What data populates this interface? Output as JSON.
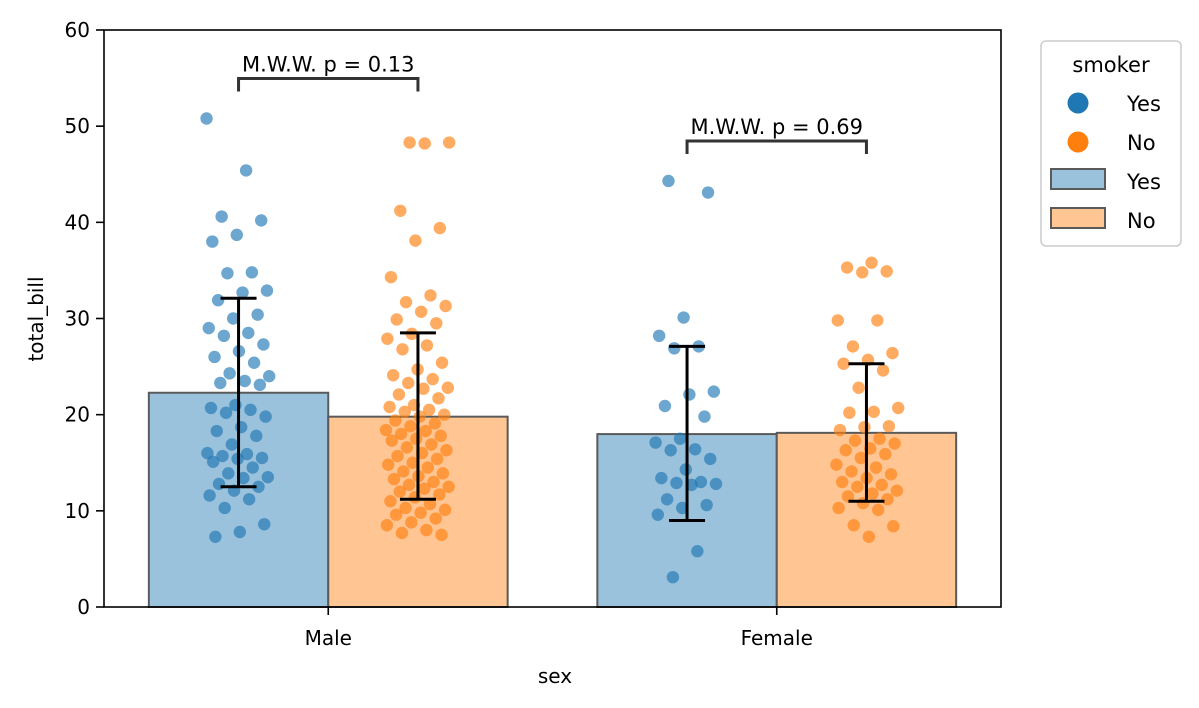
{
  "chart_data": {
    "type": "bar",
    "xlabel": "sex",
    "ylabel": "total_bill",
    "ylim": [
      0,
      60
    ],
    "yticks": [
      "0",
      "10",
      "20",
      "30",
      "40",
      "50",
      "60"
    ],
    "categories": [
      "Male",
      "Female"
    ],
    "hue_title": "smoker",
    "grid": false,
    "legend_position": "outside-top-right",
    "colors": {
      "Yes": "#1f77b4",
      "No": "#ff7f0e"
    },
    "series": [
      {
        "name": "Yes",
        "values": [
          22.28,
          17.98
        ],
        "err_low": [
          12.5,
          9.0
        ],
        "err_high": [
          32.1,
          27.1
        ],
        "points": [
          [
            50.8,
            45.4,
            40.6,
            40.2,
            38.7,
            38.0,
            34.8,
            34.7,
            32.9,
            32.7,
            31.9,
            30.4,
            30.0,
            29.0,
            28.5,
            28.2,
            27.3,
            26.6,
            26.0,
            25.4,
            24.3,
            24.0,
            23.5,
            23.3,
            23.1,
            21.0,
            20.7,
            20.5,
            20.2,
            19.8,
            18.7,
            18.3,
            17.8,
            16.9,
            16.0,
            15.9,
            15.7,
            15.5,
            15.4,
            15.1,
            14.5,
            13.9,
            13.5,
            13.4,
            12.8,
            12.5,
            12.1,
            11.6,
            11.2,
            10.3,
            8.6,
            7.8,
            7.3
          ],
          [
            44.3,
            43.1,
            30.1,
            28.2,
            27.1,
            26.9,
            22.4,
            22.1,
            20.9,
            19.8,
            17.5,
            17.1,
            16.4,
            16.3,
            15.4,
            14.3,
            13.4,
            13.0,
            12.9,
            12.8,
            12.7,
            11.2,
            10.6,
            10.3,
            9.6,
            5.8,
            3.1
          ]
        ]
      },
      {
        "name": "No",
        "values": [
          19.79,
          18.11
        ],
        "err_low": [
          11.2,
          11.0
        ],
        "err_high": [
          28.5,
          25.3
        ],
        "points": [
          [
            48.3,
            48.3,
            48.2,
            41.2,
            39.4,
            38.1,
            34.3,
            32.4,
            31.7,
            31.3,
            30.7,
            29.9,
            29.5,
            28.4,
            27.9,
            27.2,
            26.8,
            25.4,
            24.7,
            24.1,
            23.7,
            23.3,
            22.8,
            22.7,
            22.1,
            21.7,
            21.0,
            20.8,
            20.5,
            20.3,
            20.0,
            19.8,
            19.4,
            19.1,
            18.8,
            18.4,
            18.3,
            18.0,
            17.8,
            17.5,
            17.3,
            16.9,
            16.6,
            16.3,
            16.0,
            15.7,
            15.4,
            15.0,
            14.8,
            14.5,
            14.1,
            13.9,
            13.6,
            13.3,
            13.0,
            12.7,
            12.5,
            12.3,
            12.0,
            11.7,
            11.4,
            11.0,
            10.7,
            10.3,
            10.1,
            9.8,
            9.6,
            9.2,
            8.8,
            8.5,
            8.0,
            7.7,
            7.5
          ],
          [
            35.8,
            35.3,
            34.9,
            34.8,
            29.8,
            29.8,
            27.1,
            26.4,
            25.7,
            25.3,
            24.6,
            22.8,
            20.7,
            20.3,
            20.2,
            18.8,
            18.7,
            18.4,
            17.5,
            17.3,
            17.0,
            16.5,
            16.3,
            15.9,
            15.5,
            14.8,
            14.5,
            14.1,
            13.8,
            13.4,
            13.0,
            12.7,
            12.5,
            12.1,
            11.8,
            11.5,
            11.2,
            10.8,
            10.3,
            10.1,
            8.5,
            8.4,
            7.3
          ]
        ]
      }
    ],
    "annotations": [
      {
        "category": "Male",
        "text": "M.W.W. p = 0.13"
      },
      {
        "category": "Female",
        "text": "M.W.W. p = 0.69"
      }
    ]
  }
}
